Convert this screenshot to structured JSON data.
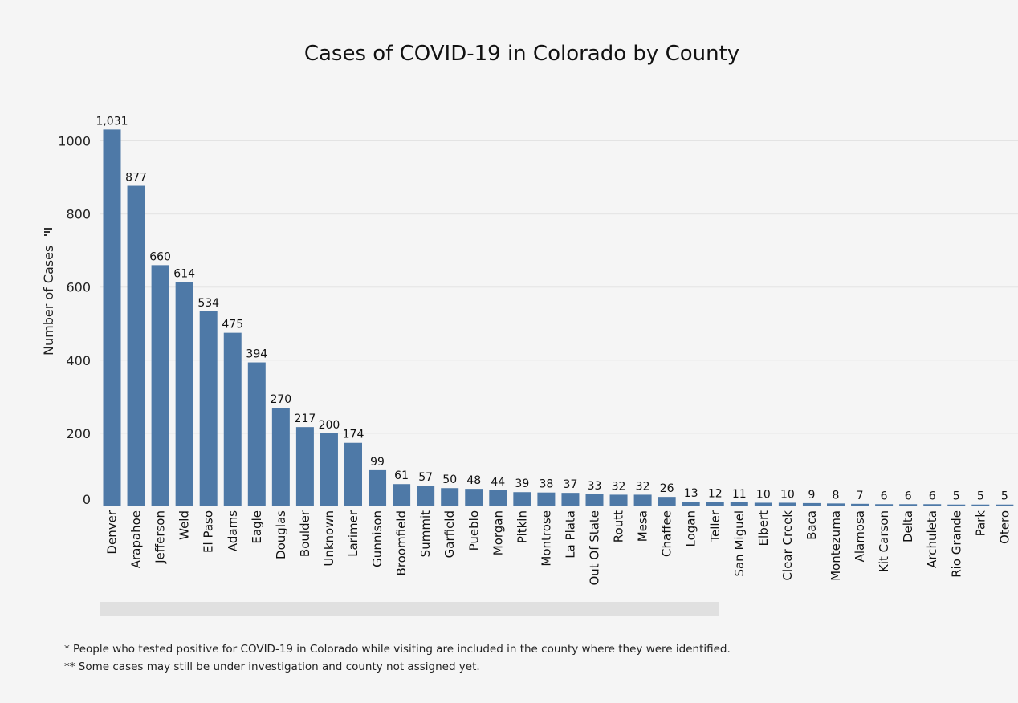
{
  "chart_data": {
    "type": "bar",
    "title": "Cases of COVID-19 in Colorado by County",
    "ylabel": "Number of Cases",
    "xlabel": "",
    "ylim": [
      0,
      1050
    ],
    "yticks": [
      0,
      200,
      400,
      600,
      800,
      1000
    ],
    "grid": true,
    "bar_color": "#4e79a7",
    "categories": [
      "Denver",
      "Arapahoe",
      "Jefferson",
      "Weld",
      "El Paso",
      "Adams",
      "Eagle",
      "Douglas",
      "Boulder",
      "Unknown",
      "Larimer",
      "Gunnison",
      "Broomfield",
      "Summit",
      "Garfield",
      "Pueblo",
      "Morgan",
      "Pitkin",
      "Montrose",
      "La Plata",
      "Out Of State",
      "Routt",
      "Mesa",
      "Chaffee",
      "Logan",
      "Teller",
      "San Miguel",
      "Elbert",
      "Clear Creek",
      "Baca",
      "Montezuma",
      "Alamosa",
      "Kit Carson",
      "Delta",
      "Archuleta",
      "Rio Grande",
      "Park",
      "Otero"
    ],
    "values": [
      1031,
      877,
      660,
      614,
      534,
      475,
      394,
      270,
      217,
      200,
      174,
      99,
      61,
      57,
      50,
      48,
      44,
      39,
      38,
      37,
      33,
      32,
      32,
      26,
      13,
      12,
      11,
      10,
      10,
      9,
      8,
      7,
      6,
      6,
      6,
      5,
      5,
      5
    ],
    "value_labels": [
      "1,031",
      "877",
      "660",
      "614",
      "534",
      "475",
      "394",
      "270",
      "217",
      "200",
      "174",
      "99",
      "61",
      "57",
      "50",
      "48",
      "44",
      "39",
      "38",
      "37",
      "33",
      "32",
      "32",
      "26",
      "13",
      "12",
      "11",
      "10",
      "10",
      "9",
      "8",
      "7",
      "6",
      "6",
      "6",
      "5",
      "5",
      "5"
    ]
  },
  "footnotes": [
    "* People who tested positive for COVID-19 in Colorado while visiting are included in the county where they were identified.",
    "** Some cases may still be under investigation and county not assigned yet."
  ]
}
